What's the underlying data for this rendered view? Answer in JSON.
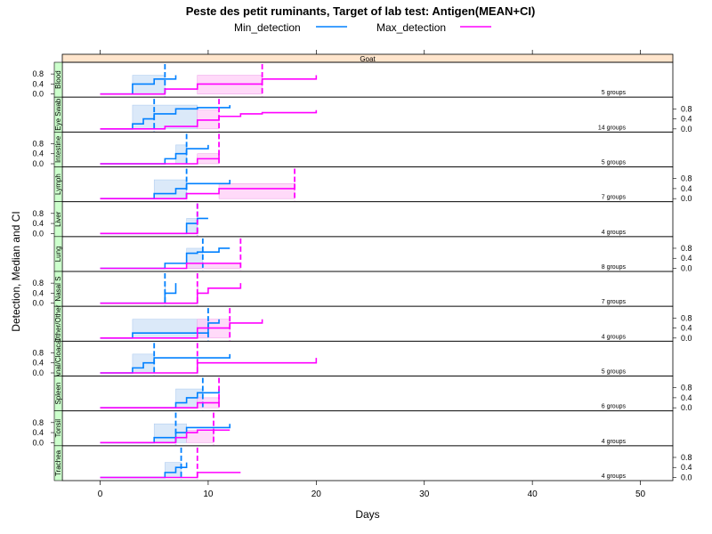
{
  "chart_data": {
    "type": "line",
    "title": "Peste des petit ruminants, Target of lab test: Antigen(MEAN+CI)",
    "legend": [
      {
        "name": "Min_detection",
        "color": "#0080ff"
      },
      {
        "name": "Max_detection",
        "color": "#ff00ff"
      }
    ],
    "strip_label": "Goat",
    "xlabel": "Days",
    "ylabel": "Detection, Median and CI",
    "xlim": [
      -3.5,
      53
    ],
    "xticks": [
      0,
      10,
      20,
      30,
      40,
      50
    ],
    "ylim": [
      0,
      1
    ],
    "yticks": [
      "0.0",
      "0.4",
      "0.8"
    ],
    "colors": {
      "min": "#0080ff",
      "max": "#ff00ff",
      "min_band": "#cfe2f7",
      "max_band": "#ffcdf7",
      "strip": "#ffe5cc",
      "panel_strip": "#ccffcc"
    },
    "panels": [
      {
        "label": "Blood",
        "groups_text": "5 groups",
        "min": {
          "steps": [
            [
              0,
              0
            ],
            [
              3,
              0.4
            ],
            [
              5,
              0.6
            ],
            [
              6,
              0.6
            ],
            [
              7,
              0.75
            ]
          ],
          "median": 6,
          "ci": [
            3,
            6
          ]
        },
        "max": {
          "steps": [
            [
              0,
              0
            ],
            [
              6,
              0.2
            ],
            [
              9,
              0.4
            ],
            [
              15,
              0.6
            ],
            [
              20,
              0.75
            ]
          ],
          "median": 15,
          "ci": [
            9,
            15
          ]
        }
      },
      {
        "label": "Eye Swab",
        "groups_text": "14 groups",
        "min": {
          "steps": [
            [
              0,
              0
            ],
            [
              3,
              0.2
            ],
            [
              4,
              0.4
            ],
            [
              5,
              0.6
            ],
            [
              7,
              0.8
            ],
            [
              9,
              0.85
            ],
            [
              12,
              0.95
            ]
          ],
          "median": 5,
          "ci": [
            3,
            9
          ]
        },
        "max": {
          "steps": [
            [
              0,
              0
            ],
            [
              6,
              0.1
            ],
            [
              9,
              0.35
            ],
            [
              11,
              0.5
            ],
            [
              13,
              0.6
            ],
            [
              15,
              0.65
            ],
            [
              20,
              0.75
            ]
          ],
          "median": 11,
          "ci": [
            9,
            11
          ]
        }
      },
      {
        "label": "Intestine",
        "groups_text": "5 groups",
        "min": {
          "steps": [
            [
              0,
              0
            ],
            [
              6,
              0.2
            ],
            [
              7,
              0.4
            ],
            [
              8,
              0.6
            ],
            [
              10,
              0.75
            ]
          ],
          "median": 8,
          "ci": [
            7,
            8
          ]
        },
        "max": {
          "steps": [
            [
              0,
              0
            ],
            [
              9,
              0.2
            ],
            [
              11,
              0.4
            ]
          ],
          "median": 11,
          "ci": [
            9,
            11
          ]
        }
      },
      {
        "label": "Lymph",
        "groups_text": "7 groups",
        "min": {
          "steps": [
            [
              0,
              0
            ],
            [
              5,
              0.2
            ],
            [
              7,
              0.4
            ],
            [
              8,
              0.6
            ],
            [
              12,
              0.75
            ]
          ],
          "median": 8,
          "ci": [
            5,
            8
          ]
        },
        "max": {
          "steps": [
            [
              0,
              0
            ],
            [
              8,
              0.2
            ],
            [
              11,
              0.4
            ],
            [
              18,
              0.6
            ]
          ],
          "median": 18,
          "ci": [
            11,
            18
          ]
        }
      },
      {
        "label": "Liver",
        "groups_text": "4 groups",
        "min": {
          "steps": [
            [
              0,
              0
            ],
            [
              8,
              0.4
            ],
            [
              9,
              0.6
            ],
            [
              10,
              0.6
            ]
          ],
          "median": 9,
          "ci": [
            8,
            9
          ]
        },
        "max": {
          "steps": [
            [
              0,
              0
            ],
            [
              9,
              0.2
            ],
            [
              9,
              0.2
            ]
          ],
          "median": 9,
          "ci": [
            9,
            9
          ]
        }
      },
      {
        "label": "Lung",
        "groups_text": "8 groups",
        "min": {
          "steps": [
            [
              0,
              0
            ],
            [
              6,
              0.2
            ],
            [
              8,
              0.6
            ],
            [
              9,
              0.65
            ],
            [
              11,
              0.8
            ],
            [
              12,
              0.8
            ]
          ],
          "median": 9.5,
          "ci": [
            8,
            9.5
          ]
        },
        "max": {
          "steps": [
            [
              0,
              0
            ],
            [
              8,
              0.2
            ],
            [
              13,
              0.2
            ]
          ],
          "median": 13,
          "ci": [
            8,
            13
          ]
        }
      },
      {
        "label": "Nasal S",
        "groups_text": "7 groups",
        "min": {
          "steps": [
            [
              0,
              0
            ],
            [
              6,
              0.4
            ],
            [
              7,
              0.8
            ]
          ],
          "median": 6,
          "ci": [
            6,
            6
          ]
        },
        "max": {
          "steps": [
            [
              0,
              0
            ],
            [
              9,
              0.4
            ],
            [
              10,
              0.6
            ],
            [
              13,
              0.8
            ]
          ],
          "median": 9,
          "ci": [
            9,
            9
          ]
        }
      },
      {
        "label": "Other/Other",
        "groups_text": "4 groups",
        "min": {
          "steps": [
            [
              0,
              0
            ],
            [
              3,
              0.2
            ],
            [
              10,
              0.6
            ],
            [
              11,
              0.75
            ]
          ],
          "median": 10,
          "ci": [
            3,
            10
          ]
        },
        "max": {
          "steps": [
            [
              0,
              0
            ],
            [
              9,
              0.4
            ],
            [
              12,
              0.6
            ],
            [
              15,
              0.75
            ]
          ],
          "median": 12,
          "ci": [
            9,
            12
          ]
        }
      },
      {
        "label": "Anal/Cloacal",
        "groups_text": "5 groups",
        "min": {
          "steps": [
            [
              0,
              0
            ],
            [
              3,
              0.2
            ],
            [
              4,
              0.4
            ],
            [
              5,
              0.6
            ],
            [
              12,
              0.75
            ]
          ],
          "median": 5,
          "ci": [
            3,
            5
          ]
        },
        "max": {
          "steps": [
            [
              0,
              0
            ],
            [
              9,
              0.4
            ],
            [
              20,
              0.6
            ]
          ],
          "median": 9,
          "ci": [
            9,
            9
          ]
        }
      },
      {
        "label": "Spleen",
        "groups_text": "6 groups",
        "min": {
          "steps": [
            [
              0,
              0
            ],
            [
              7,
              0.2
            ],
            [
              8,
              0.4
            ],
            [
              9,
              0.6
            ],
            [
              11,
              0.75
            ]
          ],
          "median": 9.5,
          "ci": [
            7,
            9.5
          ]
        },
        "max": {
          "steps": [
            [
              0,
              0
            ],
            [
              9,
              0.2
            ],
            [
              11,
              0.4
            ]
          ],
          "median": 11,
          "ci": [
            9,
            11
          ]
        }
      },
      {
        "label": "Tonsil",
        "groups_text": "4 groups",
        "min": {
          "steps": [
            [
              0,
              0
            ],
            [
              5,
              0.2
            ],
            [
              7,
              0.4
            ],
            [
              8,
              0.6
            ],
            [
              12,
              0.75
            ]
          ],
          "median": 7,
          "ci": [
            5,
            8
          ]
        },
        "max": {
          "steps": [
            [
              0,
              0
            ],
            [
              7,
              0.2
            ],
            [
              8,
              0.4
            ],
            [
              9,
              0.5
            ],
            [
              12,
              0.5
            ]
          ],
          "median": 10.5,
          "ci": [
            8,
            10.5
          ]
        }
      },
      {
        "label": "Trachea",
        "groups_text": "4 groups",
        "min": {
          "steps": [
            [
              0,
              0
            ],
            [
              6,
              0.2
            ],
            [
              7,
              0.4
            ],
            [
              8,
              0.6
            ]
          ],
          "median": 7.5,
          "ci": [
            6,
            7.5
          ]
        },
        "max": {
          "steps": [
            [
              0,
              0
            ],
            [
              9,
              0.2
            ],
            [
              13,
              0.2
            ]
          ],
          "median": 9,
          "ci": [
            9,
            9
          ]
        }
      }
    ]
  }
}
